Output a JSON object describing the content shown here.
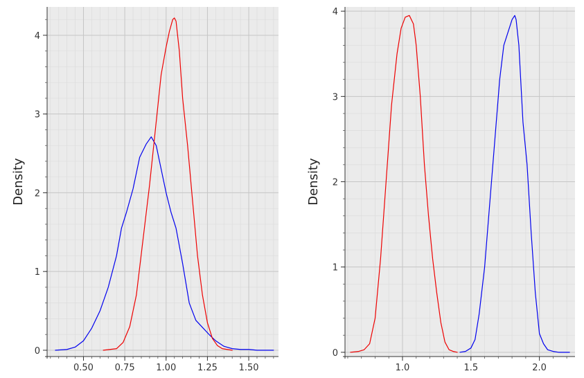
{
  "chart_data": [
    {
      "type": "line",
      "xlabel": "",
      "ylabel": "Density",
      "xlim": [
        0.28,
        1.68
      ],
      "ylim": [
        -0.08,
        4.36
      ],
      "x_ticks": [
        0.5,
        0.75,
        1.0,
        1.25,
        1.5
      ],
      "x_tick_labels": [
        "0.50",
        "0.75",
        "1.00",
        "1.25",
        "1.50"
      ],
      "y_ticks": [
        0,
        1,
        2,
        3,
        4
      ],
      "y_tick_labels": [
        "0",
        "1",
        "2",
        "3",
        "4"
      ],
      "grid": true,
      "series": [
        {
          "color": "#0000ee",
          "x": [
            0.33,
            0.4,
            0.45,
            0.5,
            0.55,
            0.6,
            0.65,
            0.7,
            0.73,
            0.76,
            0.8,
            0.84,
            0.88,
            0.91,
            0.94,
            0.97,
            1.0,
            1.03,
            1.06,
            1.1,
            1.14,
            1.18,
            1.22,
            1.26,
            1.3,
            1.35,
            1.4,
            1.45,
            1.5,
            1.55,
            1.6,
            1.65
          ],
          "y": [
            0.0,
            0.01,
            0.04,
            0.12,
            0.28,
            0.5,
            0.8,
            1.2,
            1.55,
            1.75,
            2.05,
            2.45,
            2.62,
            2.71,
            2.6,
            2.3,
            2.0,
            1.75,
            1.55,
            1.1,
            0.6,
            0.38,
            0.29,
            0.2,
            0.12,
            0.05,
            0.02,
            0.01,
            0.01,
            0.0,
            0.0,
            0.0
          ]
        },
        {
          "color": "#ee0000",
          "x": [
            0.62,
            0.66,
            0.7,
            0.74,
            0.78,
            0.82,
            0.86,
            0.9,
            0.94,
            0.97,
            1.0,
            1.02,
            1.04,
            1.05,
            1.06,
            1.08,
            1.1,
            1.13,
            1.16,
            1.19,
            1.22,
            1.25,
            1.28,
            1.31,
            1.34,
            1.37,
            1.4
          ],
          "y": [
            0.0,
            0.01,
            0.02,
            0.1,
            0.3,
            0.7,
            1.4,
            2.1,
            2.9,
            3.5,
            3.85,
            4.05,
            4.2,
            4.22,
            4.18,
            3.8,
            3.2,
            2.6,
            1.9,
            1.2,
            0.7,
            0.35,
            0.15,
            0.06,
            0.02,
            0.01,
            0.0
          ]
        }
      ]
    },
    {
      "type": "line",
      "xlabel": "",
      "ylabel": "Density",
      "xlim": [
        0.58,
        2.26
      ],
      "ylim": [
        -0.05,
        4.05
      ],
      "x_ticks": [
        1.0,
        1.5,
        2.0
      ],
      "x_tick_labels": [
        "1.0",
        "1.5",
        "2.0"
      ],
      "y_ticks": [
        0,
        1,
        2,
        3,
        4
      ],
      "y_tick_labels": [
        "0",
        "1",
        "2",
        "3",
        "4"
      ],
      "grid": true,
      "series": [
        {
          "color": "#ee0000",
          "x": [
            0.62,
            0.68,
            0.72,
            0.76,
            0.8,
            0.84,
            0.88,
            0.92,
            0.96,
            0.99,
            1.02,
            1.05,
            1.08,
            1.1,
            1.13,
            1.16,
            1.19,
            1.22,
            1.25,
            1.28,
            1.31,
            1.34,
            1.37,
            1.4
          ],
          "y": [
            0.0,
            0.01,
            0.03,
            0.1,
            0.4,
            1.1,
            2.0,
            2.9,
            3.5,
            3.8,
            3.93,
            3.95,
            3.85,
            3.6,
            3.0,
            2.2,
            1.6,
            1.1,
            0.7,
            0.35,
            0.12,
            0.03,
            0.01,
            0.0
          ]
        },
        {
          "color": "#0000ee",
          "x": [
            1.42,
            1.46,
            1.5,
            1.53,
            1.56,
            1.6,
            1.64,
            1.68,
            1.71,
            1.74,
            1.77,
            1.8,
            1.82,
            1.83,
            1.85,
            1.88,
            1.91,
            1.94,
            1.97,
            2.0,
            2.03,
            2.06,
            2.1,
            2.14,
            2.18,
            2.22
          ],
          "y": [
            0.0,
            0.01,
            0.05,
            0.15,
            0.45,
            1.0,
            1.8,
            2.6,
            3.2,
            3.6,
            3.75,
            3.9,
            3.95,
            3.9,
            3.6,
            2.7,
            2.2,
            1.4,
            0.7,
            0.22,
            0.1,
            0.03,
            0.01,
            0.0,
            0.0,
            0.0
          ]
        }
      ]
    }
  ]
}
